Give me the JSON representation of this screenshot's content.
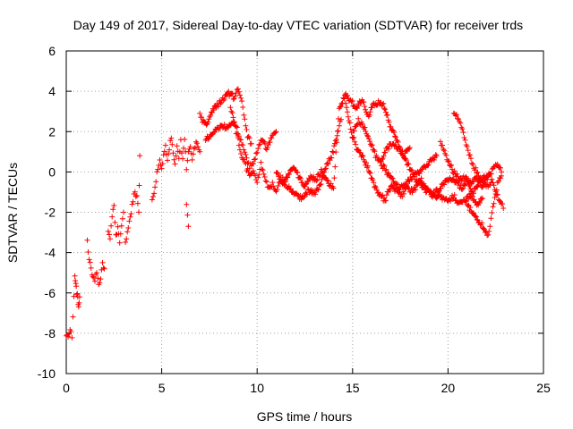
{
  "chart_data": {
    "type": "scatter",
    "title": "Day 149 of 2017, Sidereal Day-to-day VTEC variation (SDTVAR) for receiver trds",
    "xlabel": "GPS time / hours",
    "ylabel": "SDTVAR / TECUs",
    "xlim": [
      0,
      25
    ],
    "ylim": [
      -10,
      6
    ],
    "x_ticks": [
      0,
      5,
      10,
      15,
      20,
      25
    ],
    "y_ticks": [
      -10,
      -8,
      -6,
      -4,
      -2,
      0,
      2,
      4,
      6
    ],
    "grid": true,
    "marker": "plus",
    "color": "#ff0000",
    "series": [
      {
        "name": "SDTVAR",
        "segments": [
          {
            "x": [
              0.0,
              0.1,
              0.2,
              0.3,
              0.45,
              0.5,
              0.55,
              0.6,
              0.65,
              0.7
            ],
            "y": [
              -8.0,
              -8.2,
              -7.8,
              -8.1,
              -5.1,
              -5.5,
              -6.0,
              -6.3,
              -6.6,
              -6.2
            ]
          },
          {
            "x": [
              1.1,
              1.2,
              1.3,
              1.4,
              1.5,
              1.6,
              1.7,
              1.8,
              1.9,
              2.0
            ],
            "y": [
              -3.5,
              -4.3,
              -4.8,
              -5.2,
              -5.4,
              -5.0,
              -5.6,
              -5.2,
              -4.6,
              -4.8
            ]
          },
          {
            "x": [
              2.2,
              2.3,
              2.4,
              2.5,
              2.6,
              2.7,
              2.8,
              2.9,
              3.0
            ],
            "y": [
              -3.0,
              -3.3,
              -2.2,
              -1.6,
              -3.2,
              -2.8,
              -3.4,
              -2.6,
              -2.0
            ]
          },
          {
            "x": [
              3.1,
              3.3,
              3.5,
              3.6,
              3.7,
              3.8,
              3.85
            ],
            "y": [
              -3.6,
              -2.5,
              -1.4,
              -1.0,
              -1.2,
              -2.0,
              0.8
            ]
          },
          {
            "x": [
              4.5,
              4.6,
              4.7,
              4.8,
              4.9,
              5.0,
              5.1,
              5.2,
              5.3,
              5.4,
              5.5,
              5.6,
              5.7,
              5.8,
              5.9,
              6.0,
              6.1,
              6.2,
              6.3,
              6.4,
              6.5,
              6.6,
              6.7,
              6.8,
              6.9,
              7.0
            ],
            "y": [
              -1.5,
              -1.0,
              -0.4,
              0.2,
              0.6,
              0.1,
              0.8,
              1.3,
              0.5,
              1.2,
              1.7,
              0.9,
              0.4,
              1.4,
              0.7,
              1.5,
              0.6,
              1.6,
              0.2,
              0.9,
              1.3,
              0.6,
              1.1,
              1.5,
              1.2,
              1.0
            ]
          },
          {
            "x": [
              6.3,
              6.4
            ],
            "y": [
              -1.6,
              -2.7
            ]
          },
          {
            "x": [
              7.0,
              7.3,
              7.6,
              7.9,
              8.2,
              8.5,
              8.8,
              9.0,
              9.1,
              9.2,
              9.3,
              9.4,
              9.5,
              9.7
            ],
            "y": [
              2.8,
              2.3,
              2.9,
              3.3,
              3.6,
              3.9,
              3.7,
              4.2,
              3.9,
              3.4,
              2.9,
              2.3,
              1.8,
              1.4
            ]
          },
          {
            "x": [
              7.3,
              7.6,
              7.9,
              8.2,
              8.5,
              8.8,
              9.0,
              9.2,
              9.4,
              9.6,
              9.8,
              10.0,
              10.2,
              10.5,
              10.8,
              11.0
            ],
            "y": [
              1.6,
              1.9,
              2.1,
              2.3,
              2.2,
              2.5,
              2.0,
              1.4,
              0.8,
              0.3,
              0.5,
              1.0,
              1.6,
              1.2,
              1.8,
              2.0
            ]
          },
          {
            "x": [
              8.6,
              8.8,
              9.0,
              9.2,
              9.4,
              9.6,
              9.8,
              10.0,
              10.2,
              10.4,
              10.6,
              10.8,
              11.0,
              11.2,
              11.5,
              11.8,
              12.1,
              12.4,
              12.7,
              13.0,
              13.3,
              13.6,
              13.9,
              14.2,
              14.4
            ],
            "y": [
              3.3,
              2.4,
              1.6,
              0.8,
              0.3,
              -0.2,
              0.1,
              -0.5,
              0.4,
              -0.3,
              -0.8,
              -0.6,
              -1.0,
              -0.4,
              -0.6,
              -0.9,
              -1.2,
              -1.3,
              -0.9,
              -1.1,
              -0.7,
              0.2,
              0.8,
              1.8,
              2.6
            ]
          },
          {
            "x": [
              11.0,
              11.3,
              11.6,
              11.9,
              12.2,
              12.5,
              12.8,
              13.1,
              13.4,
              13.7,
              14.0,
              14.3,
              14.6,
              14.9,
              15.2,
              15.5,
              15.8,
              16.1,
              16.4,
              16.7,
              17.0,
              17.3,
              17.6,
              17.9,
              18.2,
              18.5,
              18.8,
              19.1,
              19.4
            ],
            "y": [
              0.0,
              -0.4,
              -0.2,
              0.3,
              -0.3,
              -0.7,
              -0.2,
              -0.4,
              0.1,
              -0.5,
              -0.8,
              3.2,
              3.7,
              2.1,
              1.2,
              0.8,
              0.2,
              -0.6,
              -1.1,
              -1.4,
              -0.7,
              -0.9,
              -1.2,
              -0.5,
              -0.2,
              0.0,
              0.3,
              0.6,
              0.8
            ]
          },
          {
            "x": [
              14.6,
              14.9,
              15.2,
              15.5,
              15.8,
              16.1,
              16.4,
              16.7,
              17.0,
              17.3,
              17.6,
              17.9,
              18.2,
              18.5,
              18.8,
              19.1,
              19.4,
              19.7,
              20.0,
              20.3,
              20.6,
              20.9,
              21.2,
              21.5,
              21.8
            ],
            "y": [
              3.8,
              3.5,
              3.2,
              3.6,
              2.8,
              3.3,
              3.5,
              3.2,
              2.2,
              1.6,
              0.9,
              0.4,
              -0.2,
              -0.6,
              -0.9,
              -1.1,
              -1.2,
              -1.3,
              -1.5,
              -1.2,
              -1.6,
              -1.4,
              -1.1,
              -1.6,
              -1.3
            ]
          },
          {
            "x": [
              15.0,
              15.3,
              15.6,
              15.9,
              16.2,
              16.5,
              16.8,
              17.1,
              17.4,
              17.7,
              18.0,
              18.3,
              18.6,
              18.9,
              19.2,
              19.5,
              19.8,
              20.1,
              20.4,
              20.7,
              21.0,
              21.3,
              21.6,
              21.9,
              22.2
            ],
            "y": [
              1.8,
              2.6,
              2.2,
              1.6,
              0.8,
              0.4,
              0.0,
              -0.4,
              -0.8,
              -0.6,
              -1.0,
              -0.8,
              -0.4,
              -0.8,
              -1.1,
              -0.9,
              -0.6,
              -0.3,
              -0.5,
              -0.8,
              -0.4,
              -1.0,
              -0.6,
              -0.3,
              -0.1
            ]
          },
          {
            "x": [
              16.5,
              16.8,
              17.1,
              17.4,
              17.7,
              18.0
            ],
            "y": [
              0.6,
              1.2,
              1.4,
              1.2,
              0.8,
              1.2
            ]
          },
          {
            "x": [
              19.6,
              19.8,
              20.0,
              20.3,
              20.6,
              20.9,
              21.2,
              21.5,
              21.8,
              22.1,
              22.4,
              22.6,
              22.8
            ],
            "y": [
              1.5,
              1.0,
              0.6,
              0.0,
              -0.4,
              -0.3,
              -0.6,
              -0.3,
              -0.7,
              -0.2,
              0.2,
              0.4,
              0.0
            ]
          },
          {
            "x": [
              20.3,
              20.5,
              20.7,
              20.9,
              21.1,
              21.3,
              21.5,
              21.7,
              21.9,
              22.1,
              22.3,
              22.5,
              22.7,
              22.9
            ],
            "y": [
              2.8,
              2.7,
              2.2,
              1.5,
              0.9,
              0.4,
              0.0,
              -0.3,
              -0.5,
              -0.8,
              -0.4,
              -1.0,
              -1.4,
              -1.8
            ]
          },
          {
            "x": [
              21.0,
              21.3,
              21.6,
              21.9,
              22.1,
              22.2,
              22.4,
              22.6,
              22.8
            ],
            "y": [
              -1.6,
              -2.0,
              -2.4,
              -2.8,
              -3.1,
              -2.7,
              -1.5,
              -0.6,
              -0.2
            ]
          }
        ]
      }
    ]
  }
}
